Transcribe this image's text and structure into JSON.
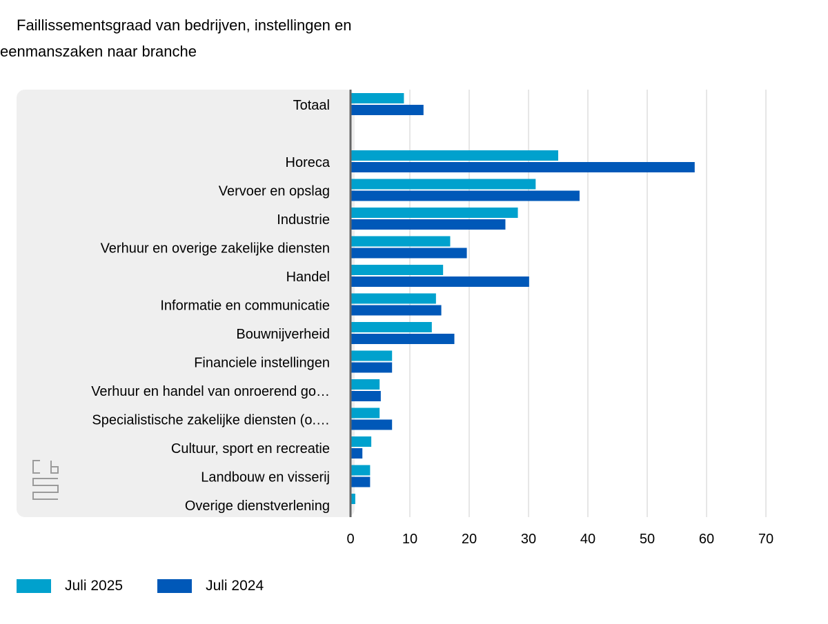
{
  "title": {
    "line1": "Faillissementsgraad van bedrijven, instellingen en",
    "line2": "eenmanszaken naar branche"
  },
  "logo": {
    "icon": "cbs-logo-icon"
  },
  "colors": {
    "series_2025": "#00a1cd",
    "series_2024": "#0058b8",
    "panel": "#efefef",
    "grid": "#cccccc",
    "axis": "#666666"
  },
  "legend": [
    {
      "label": "Juli 2025",
      "color": "#00a1cd"
    },
    {
      "label": "Juli 2024",
      "color": "#0058b8"
    }
  ],
  "chart_data": {
    "type": "bar",
    "orientation": "horizontal",
    "title": "Faillissementsgraad van bedrijven, instellingen en eenmanszaken naar branche",
    "xlim": [
      0,
      70
    ],
    "xticks": [
      0,
      10,
      20,
      30,
      40,
      50,
      60,
      70
    ],
    "grid": true,
    "legend_position": "bottom-left",
    "categories": [
      "Totaal",
      "",
      "Horeca",
      "Vervoer en opslag",
      "Industrie",
      "Verhuur en overige zakelijke diensten",
      "Handel",
      "Informatie en communicatie",
      "Bouwnijverheid",
      "Financiele instellingen",
      "Verhuur en handel van onroerend go…",
      "Specialistische zakelijke diensten (o.…",
      "Cultuur, sport en recreatie",
      "Landbouw en visserij",
      "Overige dienstverlening"
    ],
    "series": [
      {
        "name": "Juli 2025",
        "color": "#00a1cd",
        "values": [
          9.0,
          null,
          35.0,
          31.2,
          28.2,
          16.8,
          15.6,
          14.4,
          13.7,
          7.0,
          4.9,
          4.9,
          3.5,
          3.3,
          0.8
        ]
      },
      {
        "name": "Juli 2024",
        "color": "#0058b8",
        "values": [
          12.3,
          null,
          58.0,
          38.6,
          26.1,
          19.6,
          30.1,
          15.3,
          17.5,
          7.0,
          5.1,
          7.0,
          2.0,
          3.3,
          null
        ]
      }
    ]
  }
}
